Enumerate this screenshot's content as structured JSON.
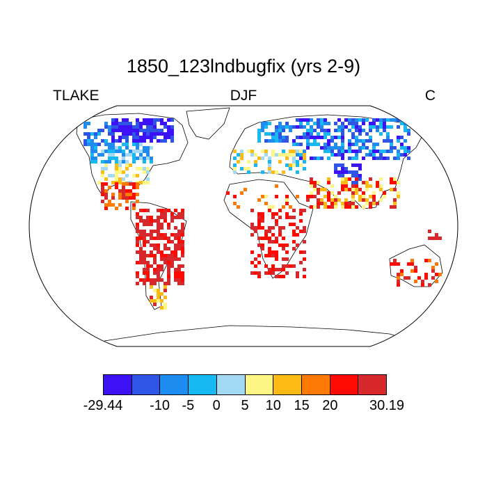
{
  "title": "1850_123lndbugfix (yrs 2-9)",
  "left_label": "TLAKE",
  "center_label": "DJF",
  "right_label": "C",
  "colorbar": {
    "colors": [
      "#3d11f5",
      "#2f55e6",
      "#1e8cf0",
      "#17b9f2",
      "#a4d9f3",
      "#fef785",
      "#ffbb15",
      "#ff7a05",
      "#ff0a00",
      "#d7282b"
    ],
    "labels": [
      "-29.44",
      "-10",
      "-5",
      "0",
      "5",
      "10",
      "15",
      "20",
      "30.19"
    ]
  }
}
